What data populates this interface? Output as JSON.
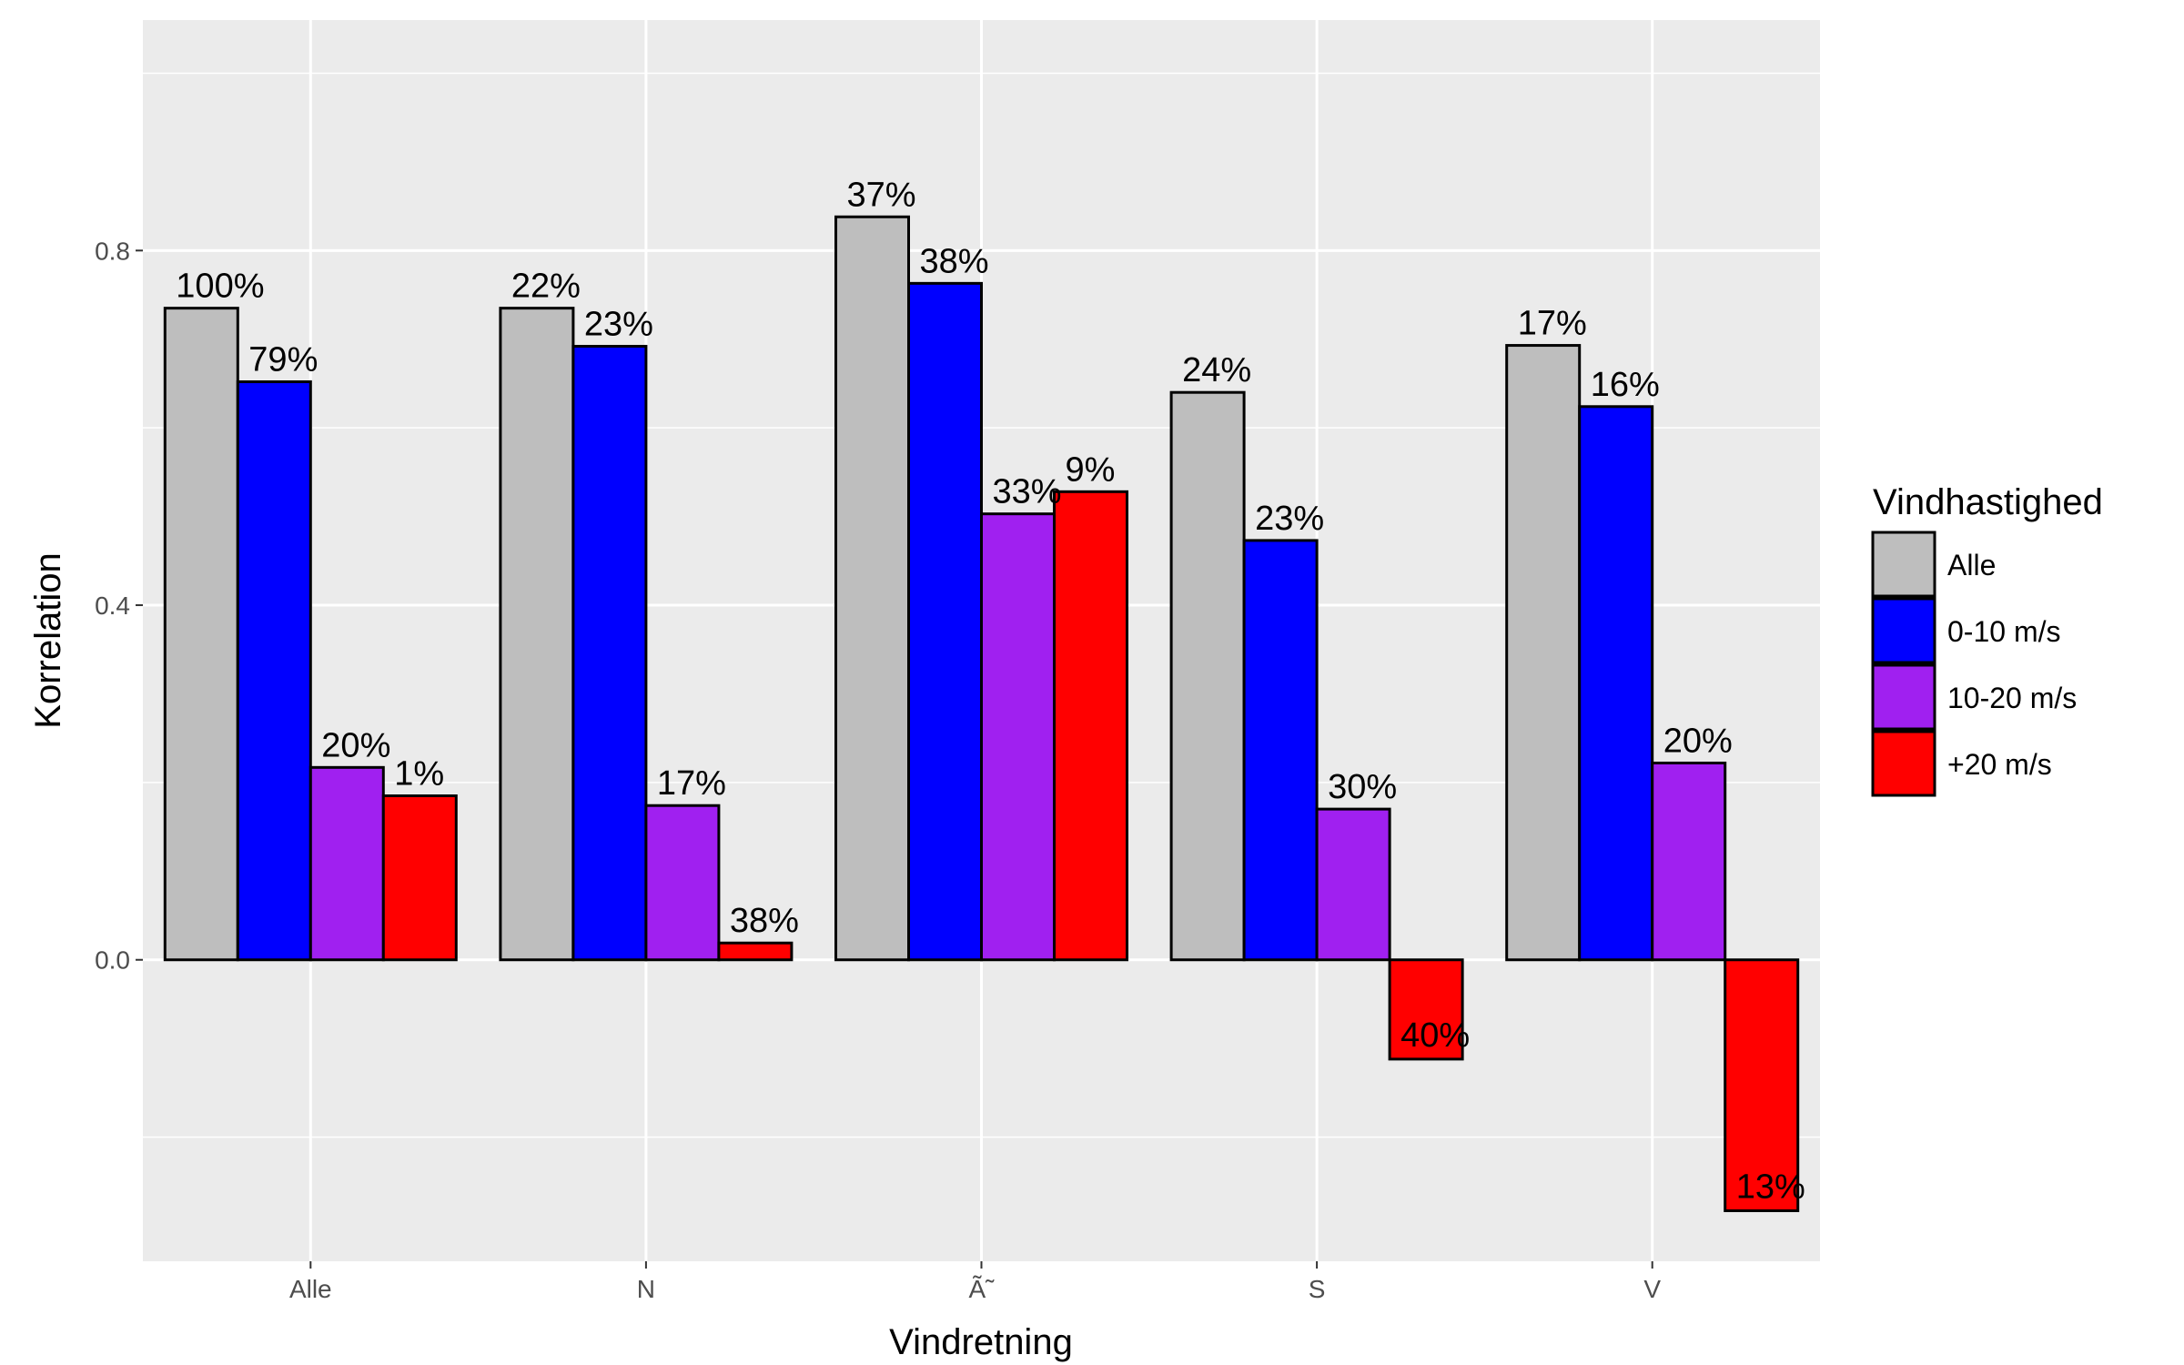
{
  "chart_data": {
    "type": "bar",
    "xlabel": "Vindretning",
    "ylabel": "Korrelation",
    "categories": [
      "Alle",
      "N",
      "Ã˜",
      "S",
      "V"
    ],
    "yticks": [
      "0.0",
      "0.4",
      "0.8"
    ],
    "ylim": [
      -0.34,
      1.06
    ],
    "grid": true,
    "legend": {
      "title": "Vindhastighed",
      "position": "right"
    },
    "series": [
      {
        "name": "Alle",
        "color": "#bebebe",
        "values": [
          0.735,
          0.735,
          0.838,
          0.64,
          0.693
        ],
        "labels": [
          "100%",
          "22%",
          "37%",
          "24%",
          "17%"
        ]
      },
      {
        "name": "0-10 m/s",
        "color": "#0000ff",
        "values": [
          0.652,
          0.692,
          0.763,
          0.473,
          0.624
        ],
        "labels": [
          "79%",
          "23%",
          "38%",
          "23%",
          "16%"
        ]
      },
      {
        "name": "10-20 m/s",
        "color": "#a020f0",
        "values": [
          0.217,
          0.174,
          0.503,
          0.17,
          0.222
        ],
        "labels": [
          "20%",
          "17%",
          "33%",
          "30%",
          "20%"
        ]
      },
      {
        "name": "+20 m/s",
        "color": "#ff0000",
        "values": [
          0.185,
          0.019,
          0.528,
          -0.112,
          -0.283
        ],
        "labels": [
          "1%",
          "38%",
          "9%",
          "40%",
          "13%"
        ]
      }
    ]
  }
}
